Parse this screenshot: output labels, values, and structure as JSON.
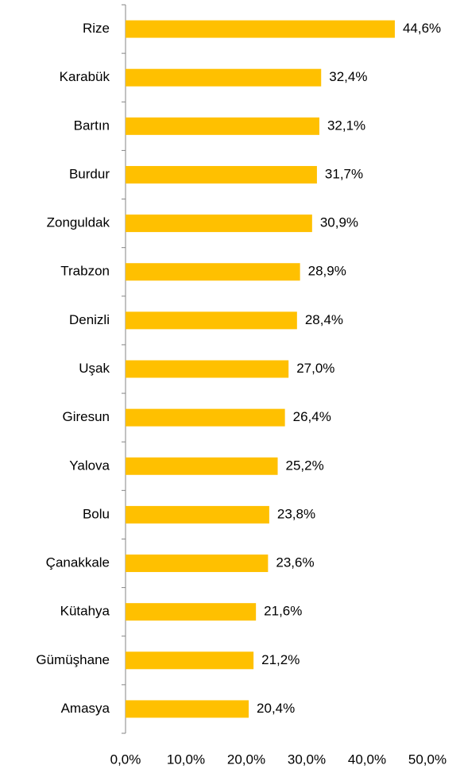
{
  "chart_data": {
    "type": "bar",
    "orientation": "horizontal",
    "categories": [
      "Rize",
      "Karabük",
      "Bartın",
      "Burdur",
      "Zonguldak",
      "Trabzon",
      "Denizli",
      "Uşak",
      "Giresun",
      "Yalova",
      "Bolu",
      "Çanakkale",
      "Kütahya",
      "Gümüşhane",
      "Amasya"
    ],
    "values": [
      44.6,
      32.4,
      32.1,
      31.7,
      30.9,
      28.9,
      28.4,
      27.0,
      26.4,
      25.2,
      23.8,
      23.6,
      21.6,
      21.2,
      20.4
    ],
    "value_labels": [
      "44,6%",
      "32,4%",
      "32,1%",
      "31,7%",
      "30,9%",
      "28,9%",
      "28,4%",
      "27,0%",
      "26,4%",
      "25,2%",
      "23,8%",
      "23,6%",
      "21,6%",
      "21,2%",
      "20,4%"
    ],
    "color": "#ffc000",
    "xlim": [
      0,
      50
    ],
    "xticks": [
      {
        "value": 0,
        "label": "0,0%"
      },
      {
        "value": 10,
        "label": "10,0%"
      },
      {
        "value": 20,
        "label": "20,0%"
      },
      {
        "value": 30,
        "label": "30,0%"
      },
      {
        "value": 40,
        "label": "40,0%"
      },
      {
        "value": 50,
        "label": "50,0%"
      }
    ]
  }
}
